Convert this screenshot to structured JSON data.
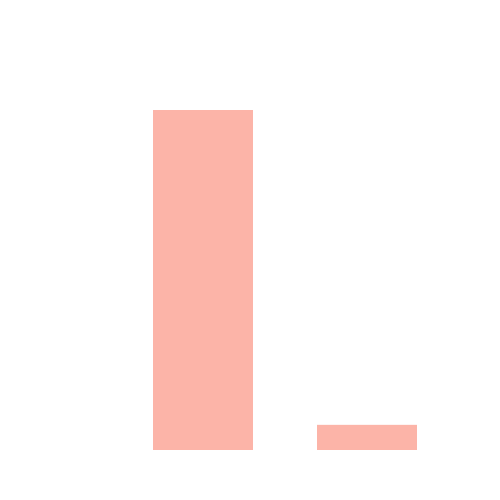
{
  "chart_data": {
    "type": "bar",
    "categories": [
      null,
      null
    ],
    "values": [
      100,
      7.4
    ],
    "color": "#fcb4a8",
    "ylim": [
      0,
      100
    ]
  }
}
